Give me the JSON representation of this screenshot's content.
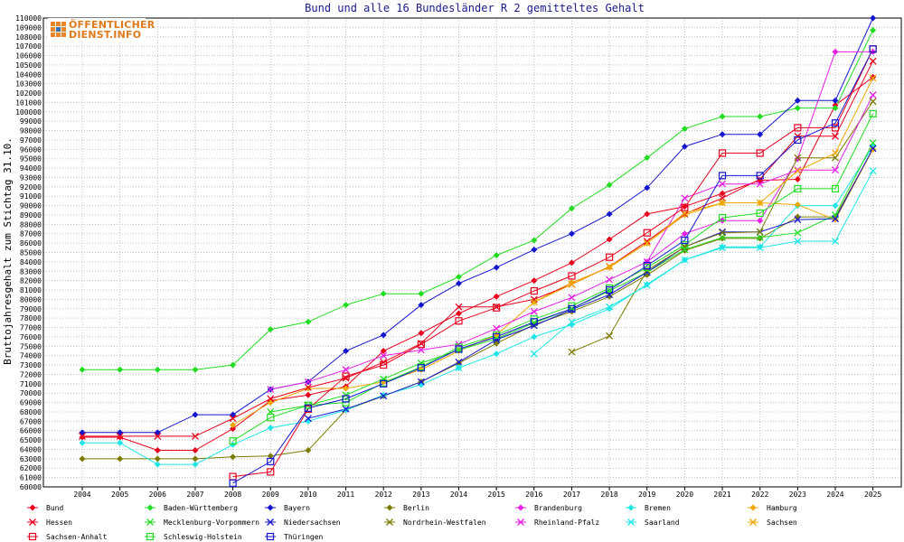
{
  "chart_data": {
    "type": "line",
    "title": "Bund und alle 16 Bundesländer R 2 gemitteltes Gehalt",
    "xlabel": "",
    "ylabel": "Bruttojahresgehalt zum Stichtag 31.10.",
    "ylim": [
      60000,
      110000
    ],
    "ytick_step": 1000,
    "grid": true,
    "legend_position": "bottom",
    "x": [
      "2004",
      "2005",
      "2006",
      "2007",
      "2008",
      "2009",
      "2010",
      "2011",
      "2012",
      "2013",
      "2014",
      "2015",
      "2016",
      "2017",
      "2018",
      "2019",
      "2020",
      "2021",
      "2022",
      "2023",
      "2024",
      "2025"
    ],
    "series": [
      {
        "name": "Bund",
        "color": "#e8001c",
        "marker": "diamond",
        "values": [
          65300,
          65300,
          63900,
          63900,
          66200,
          69200,
          69800,
          70700,
          74500,
          76400,
          78500,
          80300,
          82000,
          83900,
          86400,
          89100,
          89900,
          91300,
          92700,
          92800,
          100700,
          103700
        ]
      },
      {
        "name": "Baden-Württemberg",
        "color": "#22dd22",
        "marker": "diamond",
        "values": [
          72500,
          72500,
          72500,
          72500,
          73000,
          76800,
          77600,
          79400,
          80600,
          80600,
          82400,
          84700,
          86300,
          89700,
          92200,
          95100,
          98200,
          99500,
          99500,
          100400,
          100400,
          108700
        ]
      },
      {
        "name": "Bayern",
        "color": "#1515d0",
        "marker": "diamond",
        "values": [
          65800,
          65800,
          65800,
          67700,
          67700,
          70400,
          71200,
          74500,
          76200,
          79400,
          81700,
          83400,
          85300,
          87000,
          89100,
          91900,
          96300,
          97600,
          97600,
          101200,
          101200,
          110000
        ]
      },
      {
        "name": "Berlin",
        "color": "#7b7b00",
        "marker": "diamond",
        "values": [
          63000,
          63000,
          63000,
          63000,
          63200,
          63300,
          63900,
          68200,
          69700,
          71200,
          73200,
          75300,
          77300,
          78700,
          80300,
          82600,
          85200,
          86500,
          86500,
          88800,
          88800,
          96000
        ]
      },
      {
        "name": "Brandenburg",
        "color": "#e61ee6",
        "marker": "diamond",
        "values": [
          null,
          null,
          null,
          null,
          null,
          null,
          null,
          null,
          null,
          null,
          null,
          null,
          null,
          null,
          null,
          84000,
          87000,
          88400,
          88400,
          95000,
          106400,
          106400
        ]
      },
      {
        "name": "Bremen",
        "color": "#1ee6e6",
        "marker": "diamond",
        "values": [
          64700,
          64700,
          62400,
          62400,
          64500,
          66300,
          67000,
          68200,
          69800,
          70900,
          72700,
          74200,
          76000,
          77300,
          79000,
          81600,
          84200,
          85600,
          85600,
          90000,
          90000,
          96300
        ]
      },
      {
        "name": "Hamburg",
        "color": "#f0a800",
        "marker": "diamond",
        "values": [
          null,
          null,
          null,
          null,
          66600,
          69000,
          70500,
          70500,
          71200,
          72500,
          74500,
          76200,
          79700,
          81800,
          83400,
          86000,
          89000,
          90300,
          90300,
          90100,
          88500,
          96000
        ]
      },
      {
        "name": "Hessen",
        "color": "#e8001c",
        "marker": "cross",
        "values": [
          65400,
          65400,
          65400,
          65400,
          67300,
          69400,
          70600,
          71600,
          73300,
          75300,
          79200,
          79200,
          80000,
          81600,
          83500,
          86200,
          89100,
          90800,
          92800,
          97400,
          97400,
          105400
        ]
      },
      {
        "name": "Mecklenburg-Vorpommern",
        "color": "#22dd22",
        "marker": "cross",
        "values": [
          null,
          null,
          null,
          null,
          null,
          68000,
          68700,
          69800,
          71500,
          73200,
          74600,
          75800,
          77500,
          79000,
          80900,
          82900,
          85300,
          86600,
          86600,
          87100,
          89000,
          96700
        ]
      },
      {
        "name": "Niedersachsen",
        "color": "#1515d0",
        "marker": "cross",
        "values": [
          null,
          null,
          null,
          null,
          null,
          null,
          67300,
          68300,
          69700,
          71200,
          73300,
          75700,
          77200,
          78900,
          80500,
          82900,
          85600,
          87200,
          87200,
          88500,
          88600,
          96100
        ]
      },
      {
        "name": "Nordrhein-Westfalen",
        "color": "#7b7b00",
        "marker": "cross",
        "values": [
          null,
          null,
          null,
          null,
          null,
          null,
          null,
          null,
          null,
          null,
          null,
          null,
          null,
          74400,
          76100,
          83100,
          85600,
          87100,
          87200,
          95100,
          95100,
          101100
        ]
      },
      {
        "name": "Rheinland-Pfalz",
        "color": "#e61ee6",
        "marker": "cross",
        "values": [
          null,
          null,
          null,
          null,
          null,
          70400,
          71200,
          72500,
          74000,
          74600,
          75200,
          76900,
          78700,
          80200,
          82100,
          84000,
          90800,
          92300,
          92300,
          93800,
          93800,
          101800
        ]
      },
      {
        "name": "Saarland",
        "color": "#1ee6e6",
        "marker": "cross",
        "values": [
          null,
          null,
          null,
          null,
          null,
          null,
          null,
          null,
          null,
          null,
          72700,
          null,
          74200,
          77600,
          79200,
          81500,
          84200,
          85500,
          85500,
          86200,
          86200,
          93700
        ]
      },
      {
        "name": "Sachsen",
        "color": "#f0a800",
        "marker": "cross",
        "values": [
          null,
          null,
          null,
          null,
          null,
          null,
          null,
          null,
          null,
          null,
          null,
          null,
          79700,
          81600,
          83500,
          86000,
          89200,
          90300,
          90300,
          93700,
          95600,
          103600
        ]
      },
      {
        "name": "Sachsen-Anhalt",
        "color": "#e8001c",
        "marker": "square",
        "values": [
          null,
          null,
          null,
          null,
          61100,
          61600,
          68300,
          71800,
          73000,
          75200,
          77700,
          79100,
          80900,
          82500,
          84500,
          87100,
          89800,
          95600,
          95600,
          98300,
          98300,
          106700
        ]
      },
      {
        "name": "Schleswig-Holstein",
        "color": "#22dd22",
        "marker": "square",
        "values": [
          null,
          null,
          null,
          null,
          64900,
          67400,
          68700,
          69000,
          71100,
          72800,
          74900,
          76200,
          77900,
          79300,
          81200,
          83400,
          85800,
          88700,
          89200,
          91800,
          91800,
          99800
        ]
      },
      {
        "name": "Thüringen",
        "color": "#1515d0",
        "marker": "square",
        "values": [
          null,
          null,
          null,
          null,
          60400,
          62700,
          68400,
          69400,
          71000,
          72700,
          74700,
          76000,
          77600,
          79000,
          81000,
          83600,
          86300,
          93200,
          93200,
          97000,
          98800,
          106700
        ]
      }
    ]
  },
  "logo": {
    "line1": "ÖFFENTLICHER",
    "line2": "DIENST.INFO"
  }
}
